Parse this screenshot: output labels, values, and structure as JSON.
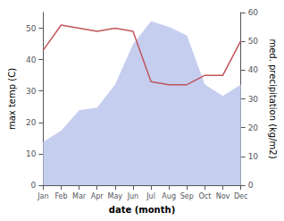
{
  "chart_data": {
    "type": "line",
    "categories": [
      "Jan",
      "Feb",
      "Mar",
      "Apr",
      "May",
      "Jun",
      "Jul",
      "Aug",
      "Sep",
      "Oct",
      "Nov",
      "Dec"
    ],
    "xlabel": "date (month)",
    "ylabel": "max temp (C)",
    "y2label": "med. precipitation (kg/m2)",
    "series": [
      {
        "type": "area",
        "color": "#c5ceef",
        "axis": "y2",
        "values": [
          15,
          19,
          26,
          27,
          35,
          49,
          57,
          55,
          52,
          35,
          31,
          35
        ]
      },
      {
        "type": "line",
        "color": "#c0555a",
        "values": [
          43,
          51,
          50,
          49,
          50,
          49,
          33,
          32,
          32,
          35,
          35,
          46
        ]
      }
    ],
    "ylim": [
      0,
      55
    ],
    "yticks": [
      0,
      10,
      20,
      30,
      40,
      50
    ],
    "y2lim": [
      0,
      60
    ],
    "y2ticks": [
      0,
      10,
      20,
      30,
      40,
      50,
      60
    ],
    "grid": false
  }
}
